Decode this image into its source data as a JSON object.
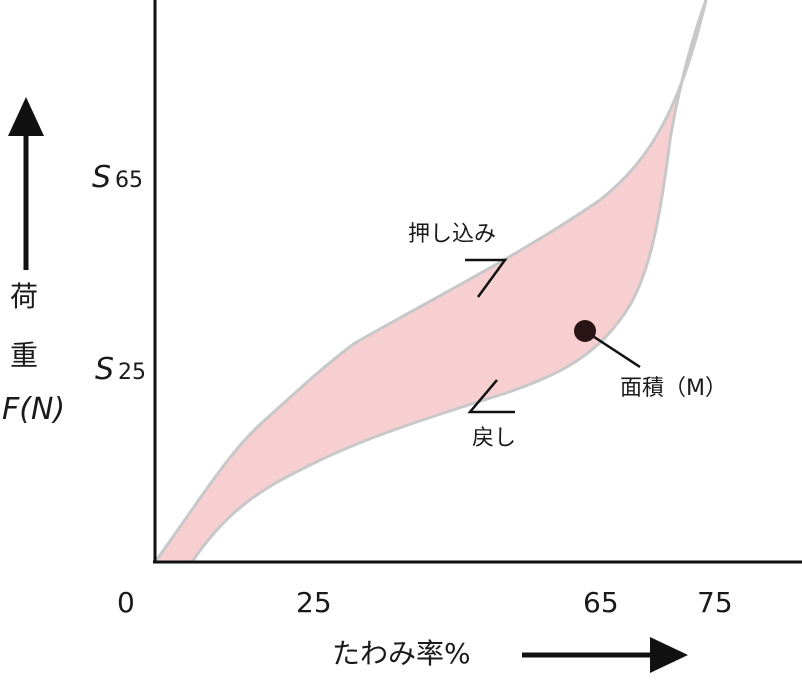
{
  "x_axis": {
    "title": "たわみ率%",
    "ticks": [
      "0",
      "25",
      "65",
      "75"
    ]
  },
  "y_axis": {
    "title_line1": "荷",
    "title_line2": "重",
    "title_line3": "F(N)",
    "s65": {
      "letter": "S",
      "sub": "65"
    },
    "s25": {
      "letter": "S",
      "sub": "25"
    }
  },
  "annotations": {
    "push": "押し込み",
    "return": "戻し",
    "area": "面積（M）"
  },
  "colors": {
    "fill": "#f7cfd0",
    "outline": "#c8c8c8",
    "axis": "#111111",
    "dot": "#2a1416"
  }
}
